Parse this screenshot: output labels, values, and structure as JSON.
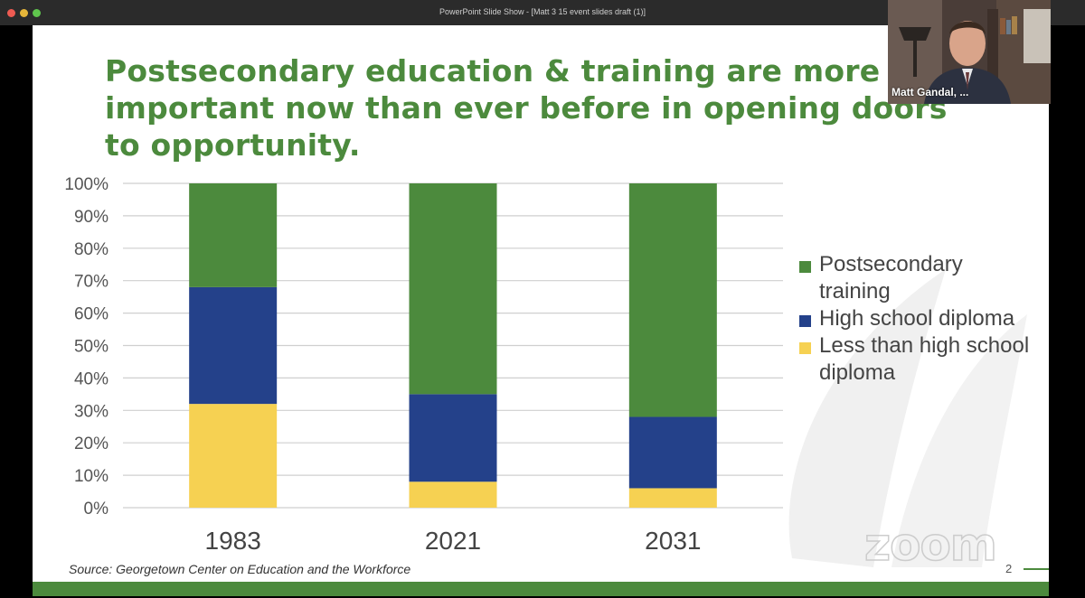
{
  "window": {
    "title": "PowerPoint Slide Show - [Matt 3 15 event slides draft (1)]"
  },
  "slide": {
    "title": "Postsecondary education & training are more important now than ever before in opening doors to opportunity.",
    "source": "Source: Georgetown Center on Education and the Workforce",
    "page_number": "2"
  },
  "video": {
    "participant_name": "Matt Gandal, ..."
  },
  "overlay": {
    "watermark_text": "zoom"
  },
  "colors": {
    "brand_green": "#4c8a3d",
    "postsecondary": "#4c8a3d",
    "high_school": "#24418a",
    "less_than_hs": "#f6d152"
  },
  "chart_data": {
    "type": "bar",
    "stacked": true,
    "categories": [
      "1983",
      "2021",
      "2031"
    ],
    "ylim": [
      0,
      100
    ],
    "yticks": [
      "0%",
      "10%",
      "20%",
      "30%",
      "40%",
      "50%",
      "60%",
      "70%",
      "80%",
      "90%",
      "100%"
    ],
    "grid": true,
    "legend_position": "right",
    "series": [
      {
        "name": "Less than high school diploma",
        "color": "#f6d152",
        "values": [
          32,
          8,
          6
        ]
      },
      {
        "name": "High school diploma",
        "color": "#24418a",
        "values": [
          36,
          27,
          22
        ]
      },
      {
        "name": "Postsecondary training",
        "color": "#4c8a3d",
        "values": [
          32,
          65,
          72
        ]
      }
    ],
    "legend": [
      {
        "label": "Postsecondary training",
        "color": "#4c8a3d"
      },
      {
        "label": "High school diploma",
        "color": "#24418a"
      },
      {
        "label": "Less than high school diploma",
        "color": "#f6d152"
      }
    ]
  }
}
